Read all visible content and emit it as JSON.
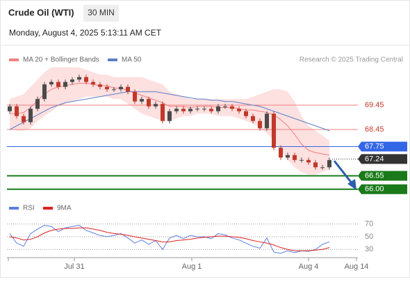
{
  "header": {
    "title": "Crude Oil (WTI)",
    "interval": "30 MIN",
    "timestamp": "Monday, August 4, 2025 5:13:11 AM CET"
  },
  "chart_data": [
    {
      "type": "candlestick",
      "credit": "Research © 2025 Trading Central",
      "up_color": "#4a4a4a",
      "down_color": "#c0392b",
      "open": [
        69.2,
        69.4,
        69.0,
        68.75,
        69.3,
        69.7,
        70.3,
        70.4,
        70.2,
        70.4,
        70.5,
        70.6,
        70.4,
        70.3,
        70.2,
        70.1,
        70.1,
        70.2,
        70.0,
        69.6,
        69.7,
        69.4,
        69.5,
        68.8,
        69.2,
        69.3,
        69.2,
        69.3,
        69.3,
        69.3,
        69.2,
        69.4,
        69.4,
        69.3,
        69.2,
        69.0,
        68.8,
        68.5,
        69.1,
        67.7,
        67.3,
        67.4,
        67.2,
        67.2,
        67.1,
        66.9,
        66.9
      ],
      "high": [
        69.5,
        69.5,
        69.1,
        69.4,
        69.8,
        70.4,
        70.5,
        70.5,
        70.5,
        70.6,
        70.7,
        70.7,
        70.5,
        70.4,
        70.3,
        70.2,
        70.3,
        70.3,
        70.1,
        69.8,
        69.8,
        69.6,
        69.6,
        69.3,
        69.4,
        69.4,
        69.4,
        69.4,
        69.4,
        69.4,
        69.5,
        69.5,
        69.5,
        69.4,
        69.3,
        69.1,
        68.9,
        69.2,
        69.2,
        67.8,
        67.5,
        67.5,
        67.3,
        67.3,
        67.2,
        67.0,
        67.3
      ],
      "low": [
        69.1,
        68.9,
        68.65,
        68.65,
        69.2,
        69.6,
        70.2,
        70.1,
        70.1,
        70.3,
        70.4,
        70.3,
        70.2,
        70.1,
        70.0,
        70.0,
        70.0,
        69.9,
        69.5,
        69.5,
        69.3,
        69.3,
        68.7,
        68.7,
        69.1,
        69.1,
        69.1,
        69.2,
        69.2,
        69.1,
        69.1,
        69.3,
        69.2,
        69.1,
        68.9,
        68.7,
        68.4,
        68.4,
        67.6,
        67.2,
        67.2,
        67.1,
        67.1,
        67.0,
        66.8,
        66.8,
        66.8
      ],
      "close": [
        69.4,
        69.0,
        68.75,
        69.3,
        69.7,
        70.3,
        70.4,
        70.2,
        70.4,
        70.5,
        70.6,
        70.4,
        70.3,
        70.2,
        70.1,
        70.1,
        70.2,
        70.0,
        69.6,
        69.7,
        69.4,
        69.5,
        68.8,
        69.2,
        69.3,
        69.2,
        69.3,
        69.3,
        69.3,
        69.2,
        69.4,
        69.4,
        69.3,
        69.2,
        69.0,
        68.8,
        68.5,
        69.1,
        67.7,
        67.3,
        67.4,
        67.2,
        67.2,
        67.1,
        66.9,
        66.9,
        67.2
      ],
      "bollinger": {
        "name": "MA 20 + Bollinger Bands",
        "color": "#f08080",
        "fill": "#fde0e0",
        "middle": [
          69.1,
          69.1,
          69.15,
          69.35,
          69.65,
          69.9,
          70.1,
          70.2,
          70.25,
          70.3,
          70.35,
          70.35,
          70.3,
          70.25,
          70.25,
          70.15,
          70.15,
          70.05,
          69.95,
          69.85,
          69.75,
          69.65,
          69.55,
          69.4,
          69.4,
          69.4,
          69.35,
          69.4,
          69.4,
          69.4,
          69.35,
          69.35,
          69.35,
          69.3,
          69.25,
          69.25,
          69.2,
          69.15,
          69.05,
          68.85,
          68.6,
          68.25,
          67.85,
          67.6,
          67.5,
          67.45,
          67.4
        ],
        "upper": [
          69.7,
          69.8,
          69.9,
          70.2,
          70.5,
          70.8,
          71.0,
          71.0,
          71.0,
          71.0,
          71.0,
          70.9,
          70.8,
          70.7,
          70.7,
          70.6,
          70.6,
          70.6,
          70.6,
          70.6,
          70.5,
          70.4,
          70.3,
          70.0,
          69.9,
          69.8,
          69.7,
          69.7,
          69.7,
          69.7,
          69.7,
          69.7,
          69.7,
          69.7,
          69.7,
          69.8,
          69.9,
          70.0,
          70.1,
          70.1,
          70.0,
          69.6,
          69.0,
          68.6,
          68.4,
          68.2,
          68.0
        ],
        "lower": [
          68.5,
          68.4,
          68.4,
          68.5,
          68.8,
          69.0,
          69.2,
          69.4,
          69.5,
          69.6,
          69.7,
          69.8,
          69.8,
          69.8,
          69.8,
          69.7,
          69.7,
          69.5,
          69.3,
          69.1,
          69.0,
          68.9,
          68.8,
          68.8,
          68.9,
          69.0,
          69.0,
          69.1,
          69.1,
          69.1,
          69.0,
          69.0,
          69.0,
          68.9,
          68.8,
          68.7,
          68.5,
          68.3,
          68.0,
          67.6,
          67.2,
          66.9,
          66.7,
          66.6,
          66.6,
          66.7,
          66.8
        ]
      },
      "ma50": {
        "name": "MA 50",
        "color": "#5b7fc7",
        "values": [
          68.45,
          68.6,
          68.75,
          68.9,
          69.05,
          69.2,
          69.35,
          69.45,
          69.55,
          69.6,
          69.65,
          69.7,
          69.75,
          69.8,
          69.85,
          69.9,
          69.95,
          70.0,
          70.0,
          70.0,
          70.0,
          70.0,
          69.95,
          69.9,
          69.85,
          69.8,
          69.75,
          69.7,
          69.7,
          69.65,
          69.65,
          69.6,
          69.6,
          69.55,
          69.5,
          69.45,
          69.4,
          69.3,
          69.2,
          69.1,
          69.0,
          68.9,
          68.8,
          68.7,
          68.6,
          68.5,
          68.4
        ]
      },
      "levels": [
        {
          "value": 69.45,
          "color": "#f08080",
          "text_color": "#c0392b",
          "style": "text"
        },
        {
          "value": 68.45,
          "color": "#f08080",
          "text_color": "#c0392b",
          "style": "text"
        },
        {
          "value": 67.75,
          "color": "#3366e6",
          "style": "box"
        },
        {
          "value": 67.24,
          "color": "#333333",
          "style": "box",
          "line": "dotted"
        },
        {
          "value": 66.55,
          "color": "#1a7a1a",
          "style": "box"
        },
        {
          "value": 66.0,
          "label": "66.00",
          "color": "#1a7a1a",
          "style": "box"
        }
      ],
      "ylim": [
        65.68,
        71.62
      ]
    },
    {
      "type": "line",
      "series": [
        {
          "name": "RSI",
          "color": "#5b7fe0",
          "values": [
            55,
            40,
            35,
            55,
            62,
            68,
            66,
            58,
            64,
            66,
            68,
            60,
            56,
            52,
            50,
            52,
            55,
            48,
            40,
            45,
            38,
            44,
            30,
            48,
            52,
            47,
            52,
            50,
            50,
            47,
            55,
            53,
            48,
            45,
            40,
            35,
            32,
            48,
            26,
            24,
            28,
            25,
            28,
            27,
            30,
            38,
            42
          ]
        },
        {
          "name": "9MA",
          "color": "#e02020",
          "values": [
            50,
            48,
            45,
            46,
            50,
            56,
            60,
            62,
            63,
            63,
            64,
            64,
            62,
            60,
            57,
            55,
            54,
            52,
            50,
            48,
            46,
            44,
            42,
            42,
            44,
            45,
            46,
            48,
            49,
            50,
            51,
            51,
            50,
            49,
            47,
            44,
            42,
            40,
            37,
            33,
            30,
            28,
            28,
            28,
            29,
            30,
            33
          ]
        }
      ],
      "ylim": [
        15,
        85
      ],
      "yticks": [
        70,
        50,
        30
      ],
      "x_labels": [
        "Jul 31",
        "Aug 1",
        "Aug 4",
        "Aug 14"
      ]
    }
  ]
}
